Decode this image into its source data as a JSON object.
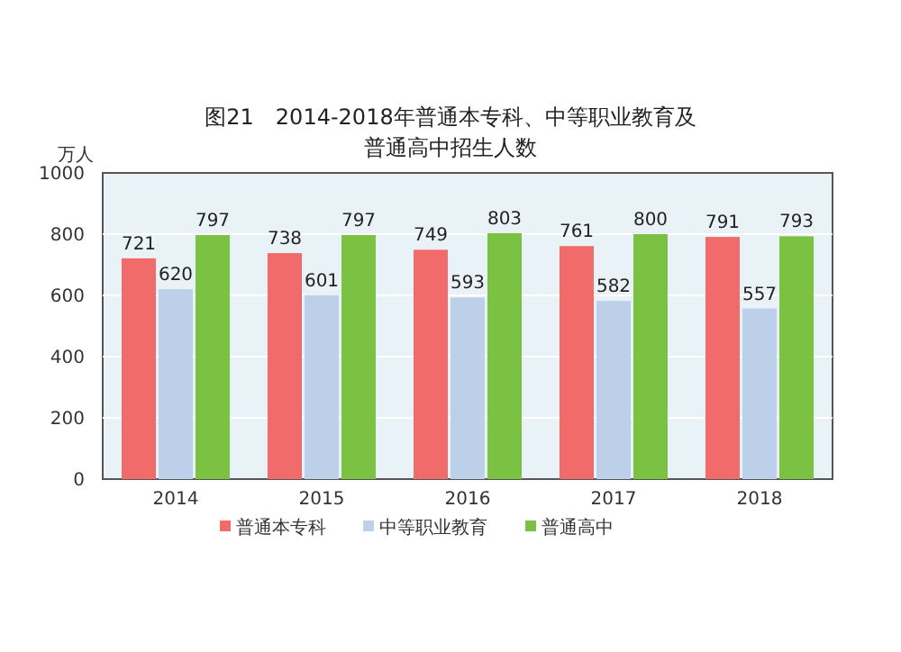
{
  "chart_data": {
    "type": "bar",
    "title": "图21　2014-2018年普通本专科、中等职业教育及普通高中招生人数",
    "ylabel": "万人",
    "categories": [
      "2014",
      "2015",
      "2016",
      "2017",
      "2018"
    ],
    "series": [
      {
        "name": "普通本专科",
        "color": "#f26b6b",
        "values": [
          721,
          738,
          749,
          761,
          791
        ]
      },
      {
        "name": "中等职业教育",
        "color": "#bcd0ea",
        "values": [
          620,
          601,
          593,
          582,
          557
        ]
      },
      {
        "name": "普通高中",
        "color": "#7cc242",
        "values": [
          797,
          797,
          803,
          800,
          793
        ]
      }
    ],
    "ylim": [
      0,
      1000
    ],
    "yticks": [
      0,
      200,
      400,
      600,
      800,
      1000
    ],
    "grid": "y",
    "legend": "bottom",
    "data_labels": true
  }
}
